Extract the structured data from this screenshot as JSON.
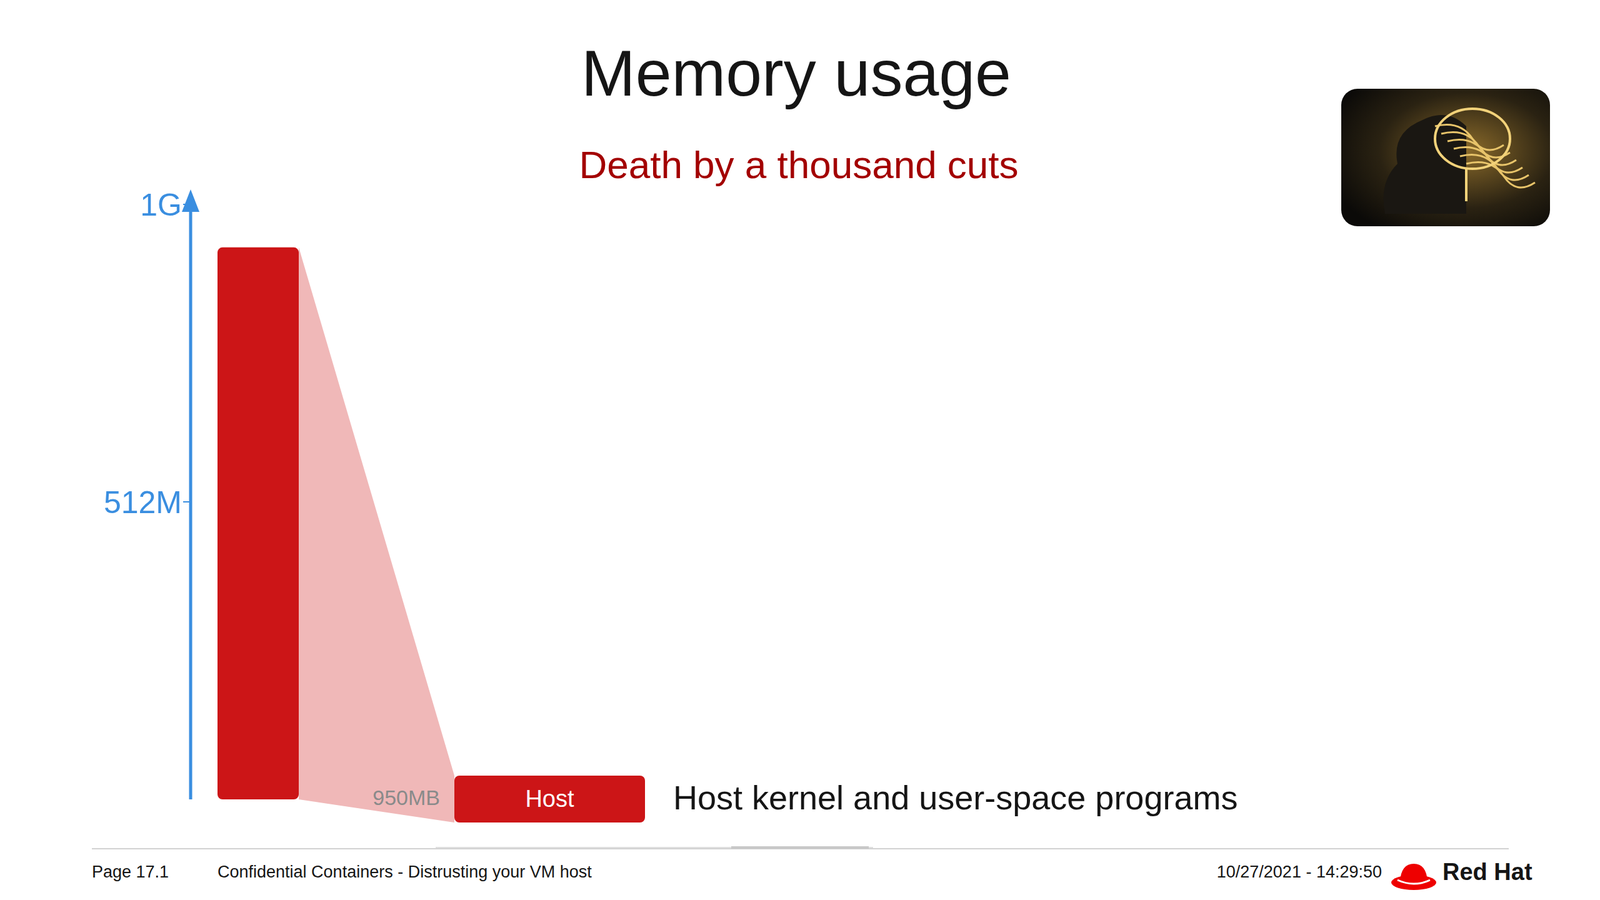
{
  "chart_data": {
    "type": "bar",
    "title": "Memory usage",
    "subtitle": "Death by a thousand cuts",
    "categories": [
      null
    ],
    "series": [
      {
        "name": "Host",
        "color": "#cc1517",
        "values": [
          950
        ],
        "value_labels": [
          "950MB"
        ]
      }
    ],
    "annotation": "Host kernel and user-space programs",
    "ylim": [
      0,
      1024
    ],
    "yticks": [
      {
        "value": 512,
        "label": "512M"
      },
      {
        "value": 1024,
        "label": "1G"
      }
    ],
    "tick_labels": "y"
  },
  "footer": {
    "page": "Page 17.1",
    "talk": "Confidential Containers - Distrusting your VM host",
    "timestamp": "10/27/2021 - 14:29:50",
    "brand": "Red Hat"
  }
}
